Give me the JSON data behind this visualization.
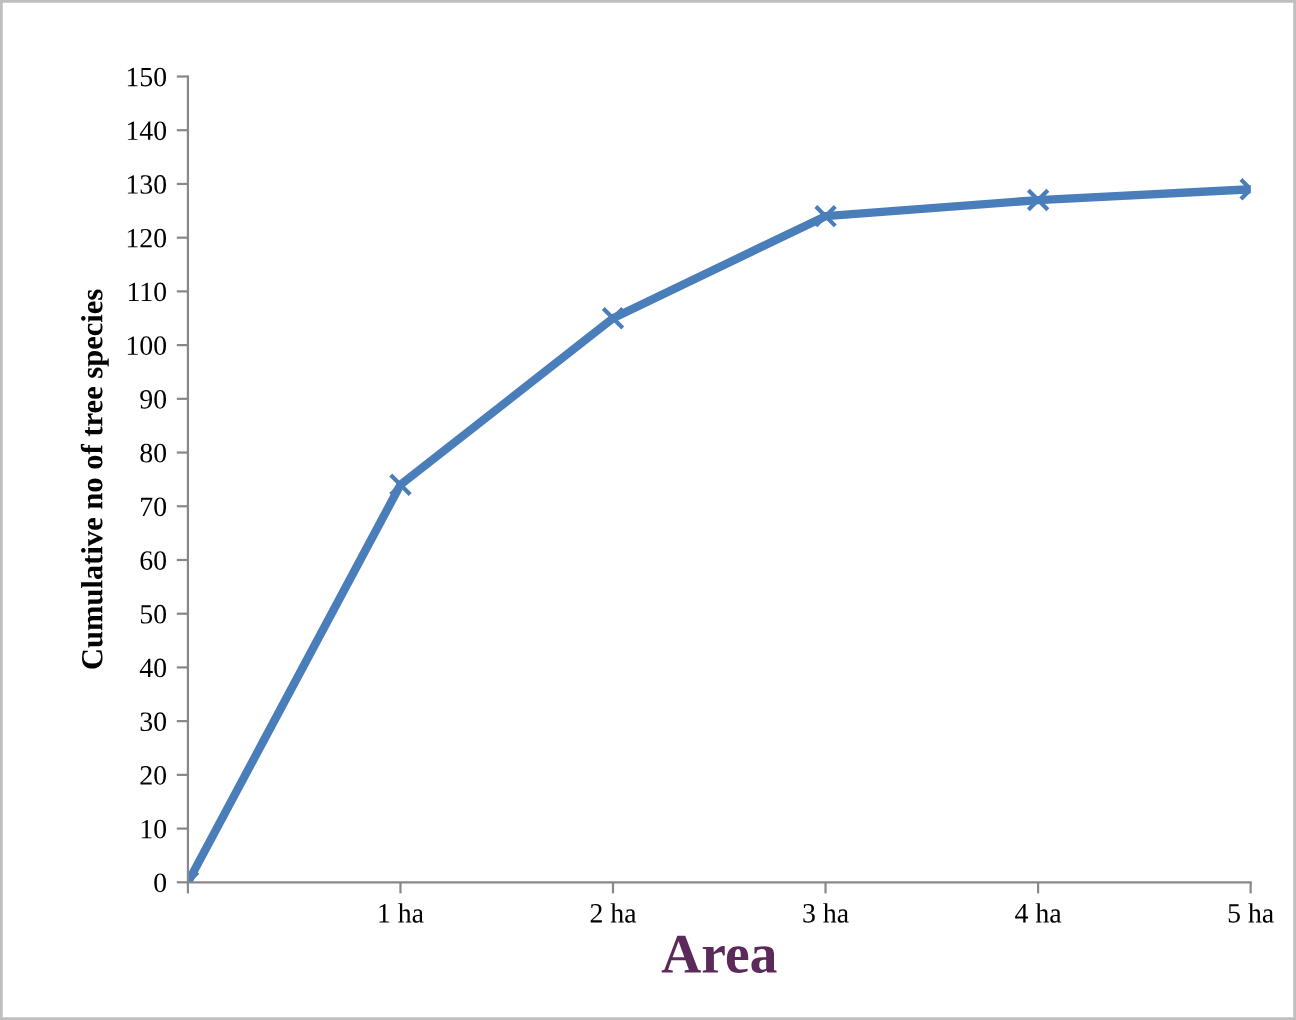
{
  "chart_data": {
    "type": "line",
    "xlabel": "Area",
    "ylabel": "Cumulative no of tree species",
    "categories": [
      null,
      "1 ha",
      "2 ha",
      "3 ha",
      "4 ha",
      "5 ha"
    ],
    "series": [
      {
        "color": "#4a7ebb",
        "values": [
          0,
          74,
          105,
          124,
          127,
          129
        ]
      }
    ],
    "ylim": [
      0,
      150
    ],
    "yticks": [
      0,
      10,
      20,
      30,
      40,
      50,
      60,
      70,
      80,
      90,
      100,
      110,
      120,
      130,
      140,
      150
    ],
    "marker": "cross",
    "line_style": "solid",
    "grid": false,
    "legend": false
  }
}
